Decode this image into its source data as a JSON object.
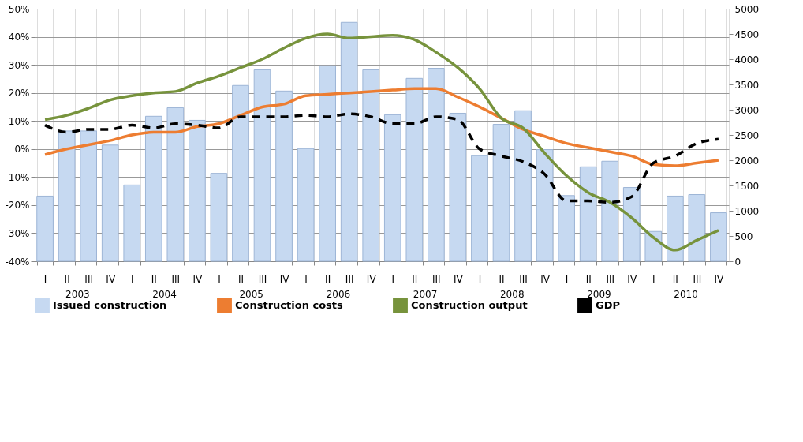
{
  "chart_data": {
    "type": "bar",
    "categories": [
      "I",
      "II",
      "III",
      "IV",
      "I",
      "II",
      "III",
      "IV",
      "I",
      "II",
      "III",
      "IV",
      "I",
      "II",
      "III",
      "IV",
      "I",
      "II",
      "III",
      "IV",
      "I",
      "II",
      "III",
      "IV",
      "I",
      "II",
      "III",
      "IV",
      "I",
      "II",
      "III",
      "IV"
    ],
    "annotations": [
      {
        "text": "2003"
      },
      {
        "text": "2004"
      },
      {
        "text": "2005"
      },
      {
        "text": "2006"
      },
      {
        "text": "2007"
      },
      {
        "text": "2008"
      },
      {
        "text": "2009"
      },
      {
        "text": "2010"
      }
    ],
    "series": [
      {
        "name": "Issued construction",
        "axis": "y2",
        "color": "#c6d9f1",
        "values": [
          1290,
          2580,
          2580,
          2300,
          1510,
          2870,
          3040,
          2790,
          1740,
          3480,
          3790,
          3370,
          2230,
          3870,
          4730,
          3790,
          2900,
          3620,
          3820,
          2930,
          2090,
          2710,
          2980,
          2210,
          1300,
          1870,
          1980,
          1460,
          590,
          1290,
          1320,
          960
        ]
      },
      {
        "name": "Construction costs",
        "type": "line",
        "color": "#ed7d31",
        "values": [
          -2,
          0,
          1.5,
          3,
          5,
          6,
          6,
          8,
          9,
          12,
          15,
          16,
          19,
          19.5,
          20,
          20.5,
          21,
          21.5,
          21.5,
          18.5,
          15,
          11,
          7,
          4.5,
          2,
          0.5,
          -1,
          -2.5,
          -5.5,
          -6,
          -5,
          -4
        ]
      },
      {
        "name": "Construction output",
        "type": "line",
        "color": "#77933c",
        "values": [
          10.5,
          12,
          14.5,
          17.5,
          19,
          20,
          20.5,
          23.5,
          26,
          29,
          32,
          36,
          39.5,
          41,
          39.5,
          40,
          40.5,
          39,
          34.5,
          29,
          21.5,
          11,
          7.5,
          -1.5,
          -9.5,
          -15.5,
          -19,
          -24.5,
          -31.5,
          -36,
          -32.5,
          -29
        ]
      },
      {
        "name": "GDP",
        "type": "line",
        "line_style": "dashed",
        "color": "#000000",
        "values": [
          8.5,
          6,
          7,
          7,
          8.5,
          7.5,
          9,
          8.5,
          7.5,
          11.5,
          11.5,
          11.5,
          12,
          11.5,
          12.5,
          11.5,
          9,
          9,
          11.5,
          10.5,
          0,
          -2.5,
          -4.5,
          -9,
          -18.5,
          -18.5,
          -19,
          -17,
          -5,
          -2.5,
          2,
          3.5
        ]
      }
    ],
    "ylim": [
      -40,
      50
    ],
    "yticks": [
      {
        "value": -40,
        "label": "-40%"
      },
      {
        "value": -30,
        "label": "-30%"
      },
      {
        "value": -20,
        "label": "-20%"
      },
      {
        "value": -10,
        "label": "-10%"
      },
      {
        "value": 0,
        "label": "0%"
      },
      {
        "value": 10,
        "label": "10%"
      },
      {
        "value": 20,
        "label": "20%"
      },
      {
        "value": 30,
        "label": "30%"
      },
      {
        "value": 40,
        "label": "40%"
      },
      {
        "value": 50,
        "label": "50%"
      }
    ],
    "y2lim": [
      0,
      5000
    ],
    "y2ticks": [
      0,
      500,
      1000,
      1500,
      2000,
      2500,
      3000,
      3500,
      4000,
      4500,
      5000
    ],
    "grid": true,
    "legend": "bottom"
  }
}
